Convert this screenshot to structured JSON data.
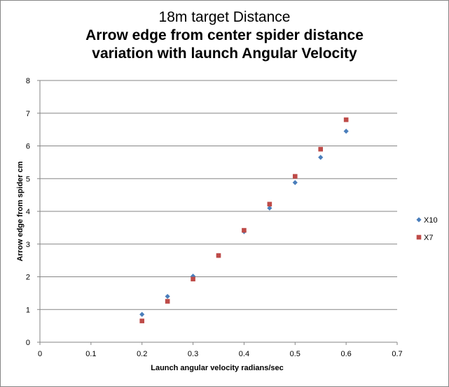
{
  "chart_data": {
    "type": "scatter",
    "title_lines": [
      "18m target Distance",
      "Arrow edge from center spider distance",
      "variation with launch Angular Velocity"
    ],
    "xlabel": "Launch angular velocity radians/sec",
    "ylabel": "Arrow edge from spider cm",
    "xlim": [
      0,
      0.7
    ],
    "ylim": [
      0,
      8
    ],
    "xticks": [
      0,
      0.1,
      0.2,
      0.3,
      0.4,
      0.5,
      0.6,
      0.7
    ],
    "xtick_labels": [
      "0",
      "0.1",
      "0.2",
      "0.3",
      "0.4",
      "0.5",
      "0.6",
      "0.7"
    ],
    "yticks": [
      0,
      1,
      2,
      3,
      4,
      5,
      6,
      7,
      8
    ],
    "ytick_labels": [
      "0",
      "1",
      "2",
      "3",
      "4",
      "5",
      "6",
      "7",
      "8"
    ],
    "grid": "horizontal",
    "legend_position": "right",
    "series": [
      {
        "name": "X10",
        "marker": "diamond",
        "color": "#4A7EBB",
        "x": [
          0.2,
          0.25,
          0.3,
          0.35,
          0.4,
          0.45,
          0.5,
          0.55,
          0.6
        ],
        "y": [
          0.85,
          1.4,
          2.02,
          2.65,
          3.38,
          4.1,
          4.88,
          5.65,
          6.45
        ]
      },
      {
        "name": "X7",
        "marker": "square",
        "color": "#BE4B48",
        "x": [
          0.2,
          0.25,
          0.3,
          0.35,
          0.4,
          0.45,
          0.5,
          0.55,
          0.6
        ],
        "y": [
          0.65,
          1.25,
          1.93,
          2.65,
          3.42,
          4.22,
          5.07,
          5.9,
          6.8
        ]
      }
    ]
  }
}
